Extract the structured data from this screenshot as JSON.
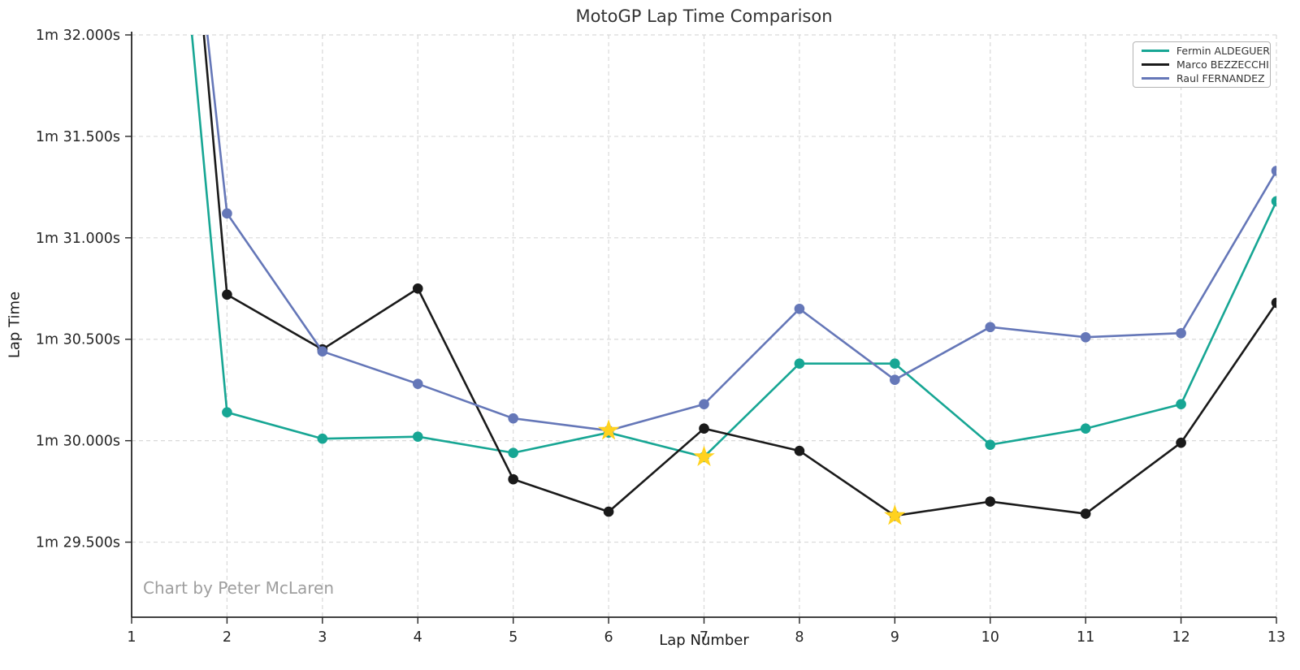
{
  "title": "MotoGP Lap Time Comparison",
  "watermark": "Chart by Peter McLaren",
  "axes": {
    "x_label": "Lap Number",
    "y_label": "Lap Time",
    "x_ticks": [
      1,
      2,
      3,
      4,
      5,
      6,
      7,
      8,
      9,
      10,
      11,
      12,
      13
    ],
    "x_domain": [
      1,
      13
    ],
    "y_domain": [
      89.13,
      92.0
    ],
    "y_ticks": [
      {
        "value": 92.0,
        "label": "1m 32.000s"
      },
      {
        "value": 91.5,
        "label": "1m 31.500s"
      },
      {
        "value": 91.0,
        "label": "1m 31.000s"
      },
      {
        "value": 90.5,
        "label": "1m 30.500s"
      },
      {
        "value": 90.0,
        "label": "1m 30.000s"
      },
      {
        "value": 89.5,
        "label": "1m 29.500s"
      }
    ],
    "grid": "dashed"
  },
  "legend_position": "top-right",
  "colors": {
    "background": "#ffffff",
    "gridline": "#d9d9d9",
    "spine": "#262626",
    "title_text": "#333333",
    "watermark_text": "#9e9e9e",
    "best_lap_star": "#ffd21e"
  },
  "chart_data": {
    "type": "line",
    "title": "MotoGP Lap Time Comparison",
    "xlabel": "Lap Number",
    "ylabel": "Lap Time",
    "x": [
      1,
      2,
      3,
      4,
      5,
      6,
      7,
      8,
      9,
      10,
      11,
      12,
      13
    ],
    "units": "seconds",
    "series": [
      {
        "name": "Fermin ALDEGUER",
        "color": "#17a694",
        "values": [
          95.2,
          90.14,
          90.01,
          90.02,
          89.94,
          90.04,
          89.92,
          90.38,
          90.38,
          89.98,
          90.06,
          90.18,
          91.18
        ],
        "best_lap": 7
      },
      {
        "name": "Marco BEZZECCHI",
        "color": "#1a1a1a",
        "values": [
          96.0,
          90.72,
          90.45,
          90.75,
          89.81,
          89.65,
          90.06,
          89.95,
          89.63,
          89.7,
          89.64,
          89.99,
          90.68
        ],
        "best_lap": 9
      },
      {
        "name": "Raul FERNANDEZ",
        "color": "#6577b8",
        "values": [
          95.4,
          91.12,
          90.44,
          90.28,
          90.11,
          90.05,
          90.18,
          90.65,
          90.3,
          90.56,
          90.51,
          90.53,
          91.33
        ],
        "best_lap": 6
      }
    ],
    "best_lap_marker": {
      "shape": "star",
      "color": "#ffd21e"
    },
    "legend_position": "top-right",
    "grid": true
  }
}
